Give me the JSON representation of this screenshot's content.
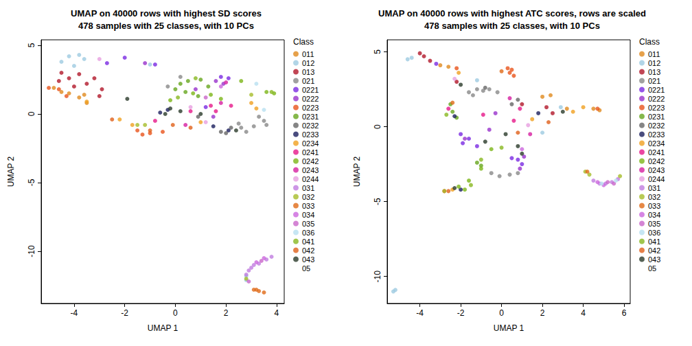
{
  "chart_data": [
    {
      "type": "scatter",
      "title": "UMAP on 40000 rows with highest SD scores",
      "subtitle": "478 samples with 25 classes, with 10 PCs",
      "x_label": "UMAP 1",
      "y_label": "UMAP 2",
      "legend_title": "Class",
      "legend": "right",
      "xlim": [
        -5.3,
        4.3
      ],
      "xticks": [
        -4,
        -2,
        0,
        2,
        4
      ],
      "ylim": [
        -13.8,
        5.4
      ],
      "yticks": [
        -10,
        -5,
        0,
        5
      ],
      "series": [
        {
          "name": "011",
          "color": "#e08a1e",
          "x": [
            -4.8,
            -4.5,
            -4.2,
            -3.8,
            -3.5,
            -3.6
          ],
          "values": [
            1.9,
            1.6,
            1.5,
            1.2,
            0.8,
            1.4
          ]
        },
        {
          "name": "012",
          "color": "#9ecae1",
          "x": [
            -4.2,
            -3.8,
            -4.5,
            -3.6,
            -1.0,
            -4.0,
            2.8,
            2.8
          ],
          "values": [
            4.2,
            4.3,
            3.8,
            4.0,
            3.6,
            3.5,
            -12.1,
            -11.8
          ]
        },
        {
          "name": "013",
          "color": "#b2182b",
          "x": [
            -4.5,
            -4.2,
            -3.8,
            -3.5,
            -4.0,
            -3.2,
            -2.9,
            -4.6,
            -3.0
          ],
          "values": [
            3.0,
            2.6,
            2.9,
            2.2,
            2.0,
            2.6,
            1.8,
            2.4,
            1.3
          ]
        },
        {
          "name": "021",
          "color": "#888888",
          "x": [
            -0.3,
            0.2,
            2.6,
            2.8,
            3.1,
            3.5,
            3.6,
            3.3,
            2.5
          ],
          "values": [
            2.0,
            2.7,
            -1.0,
            -1.3,
            -0.9,
            -0.5,
            -0.8,
            -0.2,
            -0.7
          ]
        },
        {
          "name": "0221",
          "color": "#7b2be2",
          "x": [
            -2.0,
            -2.7,
            -0.8,
            1.8,
            2.1,
            1.2
          ],
          "values": [
            4.1,
            3.7,
            3.6,
            2.7,
            2.6,
            0.5
          ]
        },
        {
          "name": "0222",
          "color": "#9932cc",
          "x": [
            1.6,
            -1.2,
            1.9,
            0.8,
            1.5
          ],
          "values": [
            2.4,
            3.7,
            2.2,
            1.8,
            -0.2
          ]
        },
        {
          "name": "0223",
          "color": "#e8541c",
          "x": [
            -5.0,
            -4.6,
            -4.3,
            -1.3,
            -1.0,
            -0.5,
            -1.5
          ],
          "values": [
            1.9,
            1.8,
            1.3,
            -1.5,
            -1.4,
            -1.3,
            -1.2
          ]
        },
        {
          "name": "0231",
          "color": "#66a61e",
          "x": [
            0.2,
            0.5,
            1.0,
            0.4,
            0.9,
            0.0,
            1.3
          ],
          "values": [
            2.2,
            2.4,
            2.5,
            1.6,
            1.3,
            1.8,
            2.0
          ]
        },
        {
          "name": "0232",
          "color": "#666666",
          "x": [
            1.8,
            2.2,
            2.0,
            0.9
          ],
          "values": [
            -1.3,
            -1.0,
            -1.4,
            -0.2
          ]
        },
        {
          "name": "0233",
          "color": "#1b1f5e",
          "x": [
            -0.6,
            -0.3,
            2.1,
            1.5
          ],
          "values": [
            0.1,
            0.3,
            -1.2,
            -0.9
          ]
        },
        {
          "name": "0234",
          "color": "#f0a020",
          "x": [
            -3.5,
            -1.7,
            -2.2,
            1.0,
            3.2,
            3.0
          ],
          "values": [
            0.9,
            -0.8,
            -0.4,
            -0.6,
            0.4,
            0.8
          ]
        },
        {
          "name": "0241",
          "color": "#e6198a",
          "x": [
            -0.8,
            0.6,
            1.6,
            2.2,
            1.4
          ],
          "values": [
            -0.5,
            0.2,
            0.2,
            0.6,
            0.6
          ]
        },
        {
          "name": "0242",
          "color": "#7cb518",
          "x": [
            -0.2,
            0.7,
            1.4,
            1.8,
            2.6,
            3.9,
            3.6
          ],
          "values": [
            1.0,
            1.5,
            1.4,
            1.1,
            2.4,
            1.5,
            1.6
          ]
        },
        {
          "name": "0243",
          "color": "#d61fa0",
          "x": [
            0.4,
            1.8,
            2.0
          ],
          "values": [
            -0.8,
            0.8,
            2.3
          ]
        },
        {
          "name": "0244",
          "color": "#e79fe0",
          "x": [
            -3.0,
            0.6,
            1.2
          ],
          "values": [
            4.0,
            0.5,
            -0.6
          ]
        },
        {
          "name": "031",
          "color": "#c07ce0",
          "x": [
            2.8,
            3.0,
            3.3,
            3.6,
            3.8,
            3.1,
            2.9
          ],
          "values": [
            -11.7,
            -11.2,
            -10.9,
            -10.6,
            -10.4,
            -11.0,
            -11.4
          ]
        },
        {
          "name": "032",
          "color": "#a6bd2b",
          "x": [
            -1.5,
            -1.2,
            3.0,
            2.8
          ],
          "values": [
            -0.8,
            -0.8,
            1.4,
            -12.0
          ]
        },
        {
          "name": "033",
          "color": "#e06a18",
          "x": [
            3.1,
            3.3,
            3.5,
            3.2
          ],
          "values": [
            -12.8,
            -12.9,
            -13.0,
            -12.8
          ]
        },
        {
          "name": "034",
          "color": "#cc66dd",
          "x": [
            3.2,
            3.5,
            1.8
          ],
          "values": [
            -10.8,
            -10.5,
            2.0
          ]
        },
        {
          "name": "035",
          "color": "#c966c9",
          "x": [
            3.4,
            2.9,
            1.2
          ],
          "values": [
            -10.7,
            -12.2,
            1.2
          ]
        },
        {
          "name": "036",
          "color": "#b8e0f0",
          "x": [
            3.5,
            3.2
          ],
          "values": [
            0.3,
            2.2
          ]
        },
        {
          "name": "041",
          "color": "#88b820",
          "x": [
            0.8,
            3.8,
            0.1
          ],
          "values": [
            2.6,
            1.6,
            1.2
          ]
        },
        {
          "name": "042",
          "color": "#e0601a",
          "x": [
            -2.5,
            -1.0,
            -0.1,
            0.6
          ],
          "values": [
            -0.4,
            -1.2,
            -0.8,
            -1.0
          ]
        },
        {
          "name": "043",
          "color": "#2b3b2b",
          "x": [
            -0.4,
            0.2,
            -0.2,
            -1.9,
            1.0,
            2.4
          ],
          "values": [
            0.0,
            0.2,
            0.4,
            1.1,
            0.0,
            -1.2
          ]
        },
        {
          "name": "05",
          "color": "#ffffff",
          "x": [],
          "values": []
        }
      ]
    },
    {
      "type": "scatter",
      "title": "UMAP on 40000 rows with highest ATC scores, rows are scaled",
      "subtitle": "478 samples with 25 classes, with 10 PCs",
      "x_label": "UMAP 1",
      "y_label": "UMAP 2",
      "legend_title": "Class",
      "legend": "right",
      "xlim": [
        -5.6,
        6.3
      ],
      "xticks": [
        -4,
        -2,
        0,
        2,
        4,
        6
      ],
      "ylim": [
        -11.8,
        5.8
      ],
      "yticks": [
        -10,
        -5,
        0,
        5
      ],
      "series": [
        {
          "name": "011",
          "color": "#e08a1e",
          "x": [
            -3.0,
            -2.6,
            2.0,
            3.2,
            4.5,
            4.8,
            2.4
          ],
          "values": [
            4.1,
            4.0,
            2.0,
            1.2,
            1.2,
            1.1,
            2.1
          ]
        },
        {
          "name": "012",
          "color": "#9ecae1",
          "x": [
            -4.6,
            -4.4,
            -1.2,
            2.0,
            2.9,
            -5.3,
            -5.2
          ],
          "values": [
            4.5,
            4.6,
            3.1,
            -0.4,
            1.3,
            -11.0,
            -10.9
          ]
        },
        {
          "name": "013",
          "color": "#b2182b",
          "x": [
            -4.0,
            -3.8,
            -3.5,
            -2.2,
            1.0,
            2.2,
            2.5
          ],
          "values": [
            4.9,
            4.7,
            4.4,
            3.0,
            1.5,
            1.3,
            0.9
          ]
        },
        {
          "name": "021",
          "color": "#888888",
          "x": [
            -1.2,
            -0.9,
            -0.6,
            -1.6,
            -1.4,
            -0.2,
            -0.5,
            -0.1,
            0.4,
            0.8
          ],
          "values": [
            2.5,
            2.4,
            2.5,
            2.3,
            2.1,
            2.3,
            -3.1,
            -3.3,
            -3.2,
            -3.1
          ]
        },
        {
          "name": "0221",
          "color": "#7b2be2",
          "x": [
            -2.0,
            -1.6,
            -1.9,
            -1.2,
            0.8,
            1.0,
            0.5,
            -3.2
          ],
          "values": [
            -0.5,
            -0.8,
            -1.1,
            -1.3,
            -2.2,
            -2.5,
            -2.1,
            4.2
          ]
        },
        {
          "name": "0222",
          "color": "#9932cc",
          "x": [
            -1.8,
            -0.6,
            0.9,
            1.1,
            -0.3
          ],
          "values": [
            -0.8,
            -0.2,
            -2.8,
            -2.0,
            0.9
          ]
        },
        {
          "name": "0223",
          "color": "#e8541c",
          "x": [
            -2.2,
            0.3,
            0.5,
            0.4,
            0.6,
            -2.8,
            4.7
          ],
          "values": [
            3.9,
            3.9,
            3.8,
            3.6,
            3.4,
            -4.3,
            1.2
          ]
        },
        {
          "name": "0231",
          "color": "#66a61e",
          "x": [
            -2.5,
            -2.4,
            -2.2,
            -1.2,
            -1.0
          ],
          "values": [
            1.5,
            1.0,
            0.6,
            -2.4,
            -2.6
          ]
        },
        {
          "name": "0232",
          "color": "#666666",
          "x": [
            0.5,
            0.8,
            -0.8
          ],
          "values": [
            1.5,
            1.8,
            2.6
          ]
        },
        {
          "name": "0233",
          "color": "#1b1f5e",
          "x": [
            -2.0,
            1.8,
            -2.3
          ],
          "values": [
            -4.2,
            0.9,
            0.7
          ]
        },
        {
          "name": "0234",
          "color": "#f0a020",
          "x": [
            -2.1,
            3.5,
            4.0,
            1.5,
            -2.4
          ],
          "values": [
            3.6,
            1.0,
            1.3,
            0.5,
            -4.2
          ]
        },
        {
          "name": "0241",
          "color": "#e6198a",
          "x": [
            -0.9,
            0.9,
            -2.6,
            0.6
          ],
          "values": [
            0.8,
            1.2,
            1.2,
            0.4
          ]
        },
        {
          "name": "0242",
          "color": "#7cb518",
          "x": [
            -1.6,
            -2.1,
            -1.8,
            -1.0,
            -0.5
          ],
          "values": [
            -3.6,
            -4.0,
            -4.2,
            -2.8,
            -1.5
          ]
        },
        {
          "name": "0243",
          "color": "#d61fa0",
          "x": [
            0.4,
            1.4
          ],
          "values": [
            1.9,
            -0.5
          ]
        },
        {
          "name": "0244",
          "color": "#e79fe0",
          "x": [
            -2.3,
            1.3
          ],
          "values": [
            3.2,
            0.1
          ]
        },
        {
          "name": "031",
          "color": "#c07ce0",
          "x": [
            4.5,
            4.8,
            5.1,
            5.4,
            5.7
          ],
          "values": [
            -3.6,
            -3.8,
            -3.8,
            -3.7,
            -3.5
          ]
        },
        {
          "name": "032",
          "color": "#a6bd2b",
          "x": [
            4.1,
            4.3,
            5.8,
            -2.8
          ],
          "values": [
            -3.0,
            -3.2,
            -3.3,
            -4.3
          ]
        },
        {
          "name": "033",
          "color": "#e06a18",
          "x": [
            -2.4,
            4.2,
            0.0
          ],
          "values": [
            1.6,
            -3.0,
            3.7
          ]
        },
        {
          "name": "034",
          "color": "#cc66dd",
          "x": [
            4.7,
            5.0,
            1.0
          ],
          "values": [
            -3.7,
            -3.9,
            -1.5
          ]
        },
        {
          "name": "035",
          "color": "#c966c9",
          "x": [
            5.2,
            5.5
          ],
          "values": [
            -3.7,
            -3.8
          ]
        },
        {
          "name": "036",
          "color": "#b8e0f0",
          "x": [
            4.9,
            5.6
          ],
          "values": [
            -3.8,
            -3.6
          ]
        },
        {
          "name": "041",
          "color": "#88b820",
          "x": [
            -1.0,
            0.0,
            -2.7,
            -1.5
          ],
          "values": [
            -2.2,
            -1.4,
            0.8,
            -3.9
          ]
        },
        {
          "name": "042",
          "color": "#e0601a",
          "x": [
            -2.6,
            2.3,
            0.8
          ],
          "values": [
            -4.3,
            0.3,
            -0.4
          ]
        },
        {
          "name": "043",
          "color": "#2b3b2b",
          "x": [
            -2.0,
            0.2,
            0.8,
            -0.8,
            1.0,
            -2.3,
            3.0
          ],
          "values": [
            2.8,
            -0.5,
            -1.3,
            -1.0,
            -1.8,
            -4.1,
            1.0
          ]
        },
        {
          "name": "05",
          "color": "#ffffff",
          "x": [],
          "values": []
        }
      ]
    }
  ]
}
